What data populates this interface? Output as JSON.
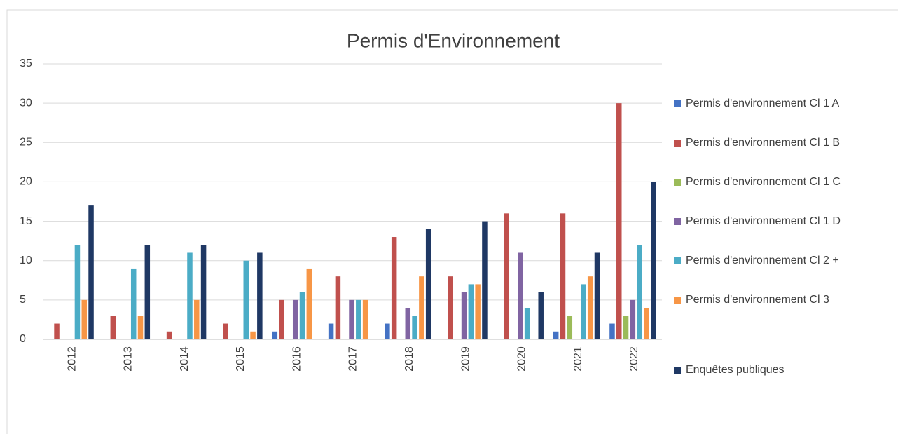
{
  "chart_data": {
    "type": "bar",
    "title": "Permis d'Environnement",
    "categories": [
      "2012",
      "2013",
      "2014",
      "2015",
      "2016",
      "2017",
      "2018",
      "2019",
      "2020",
      "2021",
      "2022"
    ],
    "series": [
      {
        "name": "Permis d'environnement Cl 1 A",
        "color": "#4472c4",
        "values": [
          0,
          0,
          0,
          0,
          1,
          2,
          2,
          0,
          0,
          1,
          2
        ]
      },
      {
        "name": "Permis d'environnement Cl 1 B",
        "color": "#c0504d",
        "values": [
          2,
          3,
          1,
          2,
          5,
          8,
          13,
          8,
          16,
          16,
          30
        ]
      },
      {
        "name": "Permis d'environnement Cl 1 C",
        "color": "#9bbb59",
        "values": [
          0,
          0,
          0,
          0,
          0,
          0,
          0,
          0,
          0,
          3,
          3
        ]
      },
      {
        "name": "Permis d'environnement Cl 1 D",
        "color": "#8064a2",
        "values": [
          0,
          0,
          0,
          0,
          5,
          5,
          4,
          6,
          11,
          0,
          5
        ]
      },
      {
        "name": "Permis d'environnement Cl 2 +",
        "color": "#4bacc6",
        "values": [
          12,
          9,
          11,
          10,
          6,
          5,
          3,
          7,
          4,
          7,
          12
        ]
      },
      {
        "name": "Permis d'environnement Cl 3",
        "color": "#f79646",
        "values": [
          5,
          3,
          5,
          1,
          9,
          5,
          8,
          7,
          0,
          8,
          4
        ]
      },
      {
        "name": "Enquêtes publiques",
        "color": "#1f3864",
        "values": [
          17,
          12,
          12,
          11,
          0,
          0,
          14,
          15,
          6,
          11,
          20
        ]
      }
    ],
    "ylim": [
      0,
      35
    ],
    "yticks": [
      0,
      5,
      10,
      15,
      20,
      25,
      30,
      35
    ],
    "grid": true,
    "legend": "right"
  }
}
